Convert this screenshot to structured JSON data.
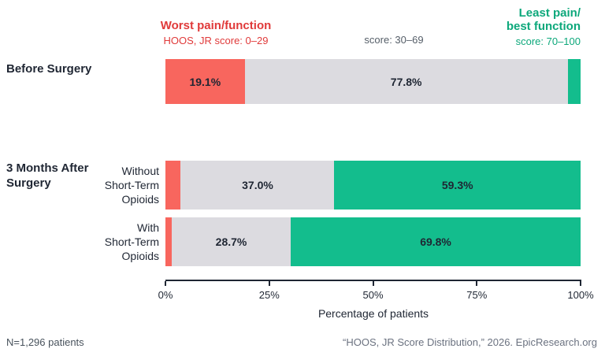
{
  "palette": {
    "worst_segment": "#f8665e",
    "mid_segment": "#dcdbe0",
    "best_segment": "#13bd8d",
    "worst_text": "#e03a3a",
    "best_text": "#0da87b",
    "dark_text": "#1f2633",
    "muted_text": "#6b7280"
  },
  "legend": {
    "worst": {
      "title": "Worst pain/function",
      "subtitle": "HOOS, JR score: 0–29"
    },
    "mid": {
      "subtitle": "score: 30–69"
    },
    "best": {
      "title_lines": [
        "Least pain/",
        "best function"
      ],
      "subtitle": "score: 70–100"
    }
  },
  "groups": {
    "before": {
      "label_lines": [
        "Before Surgery"
      ]
    },
    "after": {
      "label_lines": [
        "3 Months After",
        "Surgery"
      ]
    }
  },
  "chart_data": {
    "type": "bar",
    "orientation": "horizontal",
    "stacked": true,
    "xlim": [
      0,
      100
    ],
    "x_ticks": [
      "0%",
      "25%",
      "50%",
      "75%",
      "100%"
    ],
    "xlabel": "Percentage of patients",
    "segments": [
      "Worst pain/function (HOOS, JR score: 0–29)",
      "score: 30–69",
      "Least pain/best function (score: 70–100)"
    ],
    "rows": [
      {
        "group": "Before Surgery",
        "label_lines": [],
        "values": [
          19.1,
          77.8,
          3.1
        ],
        "value_labels": [
          "19.1%",
          "77.8%",
          ""
        ]
      },
      {
        "group": "3 Months After Surgery",
        "label_lines": [
          "Without",
          "Short-Term",
          "Opioids"
        ],
        "values": [
          3.7,
          37.0,
          59.3
        ],
        "value_labels": [
          "",
          "37.0%",
          "59.3%"
        ]
      },
      {
        "group": "3 Months After Surgery",
        "label_lines": [
          "With",
          "Short-Term",
          "Opioids"
        ],
        "values": [
          1.5,
          28.7,
          69.8
        ],
        "value_labels": [
          "",
          "28.7%",
          "69.8%"
        ]
      }
    ]
  },
  "axis": {
    "label": "Percentage of patients",
    "ticks": [
      "0%",
      "25%",
      "50%",
      "75%",
      "100%"
    ]
  },
  "footer": {
    "left": "N=1,296 patients",
    "right": "“HOOS, JR Score Distribution,” 2026. EpicResearch.org"
  }
}
